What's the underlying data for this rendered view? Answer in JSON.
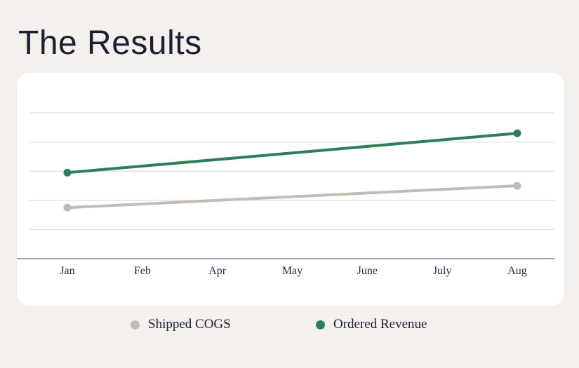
{
  "page": {
    "title": "The Results"
  },
  "chart_data": {
    "type": "line",
    "categories": [
      "Jan",
      "Feb",
      "Apr",
      "May",
      "June",
      "July",
      "Aug"
    ],
    "ylim": [
      0,
      100
    ],
    "grid": true,
    "legend_position": "bottom",
    "series": [
      {
        "name": "Shipped COGS",
        "color": "#c2bbb6",
        "x": [
          "Jan",
          "Aug"
        ],
        "values": [
          35,
          50
        ]
      },
      {
        "name": "Ordered Revenue",
        "color": "#2e7d5b",
        "x": [
          "Jan",
          "Aug"
        ],
        "values": [
          59,
          86
        ]
      }
    ]
  }
}
